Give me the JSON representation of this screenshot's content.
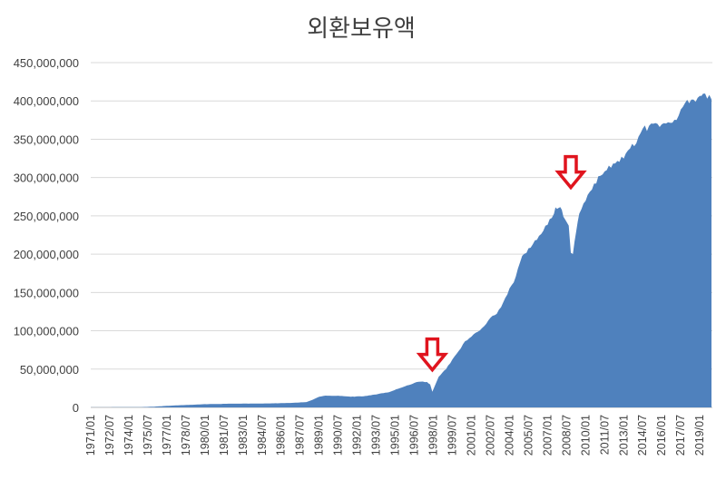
{
  "chart_data": {
    "type": "area",
    "title": "외환보유액",
    "xlabel": "",
    "ylabel": "",
    "ylim": [
      0,
      450000000
    ],
    "grid": true,
    "legend": "none",
    "color": "#4f81bd",
    "annotation_color": "#e0141e",
    "y_ticks": [
      "0",
      "50,000,000",
      "100,000,000",
      "150,000,000",
      "200,000,000",
      "250,000,000",
      "300,000,000",
      "350,000,000",
      "400,000,000",
      "450,000,000"
    ],
    "x_ticks": [
      "1971/01",
      "1972/07",
      "1974/01",
      "1975/07",
      "1977/01",
      "1978/07",
      "1980/01",
      "1981/07",
      "1983/01",
      "1984/07",
      "1986/01",
      "1987/07",
      "1989/01",
      "1990/07",
      "1992/01",
      "1993/07",
      "1995/01",
      "1996/07",
      "1998/01",
      "1999/07",
      "2001/01",
      "2002/07",
      "2004/01",
      "2005/07",
      "2007/01",
      "2008/07",
      "2010/01",
      "2011/07",
      "2013/01",
      "2014/07",
      "2016/01",
      "2017/07",
      "2019/01"
    ],
    "x": [
      "1971/01",
      "1973/01",
      "1975/01",
      "1976/01",
      "1977/01",
      "1978/01",
      "1979/01",
      "1980/01",
      "1982/01",
      "1984/01",
      "1986/01",
      "1987/01",
      "1988/01",
      "1988/07",
      "1989/01",
      "1989/07",
      "1990/01",
      "1990/07",
      "1991/07",
      "1992/07",
      "1993/07",
      "1994/07",
      "1995/07",
      "1996/07",
      "1997/01",
      "1997/07",
      "1997/10",
      "1997/12",
      "1998/06",
      "1999/01",
      "1999/07",
      "2000/01",
      "2000/07",
      "2001/01",
      "2001/07",
      "2002/01",
      "2002/07",
      "2003/01",
      "2003/07",
      "2004/01",
      "2004/07",
      "2005/01",
      "2005/07",
      "2006/01",
      "2006/07",
      "2007/01",
      "2007/07",
      "2007/10",
      "2008/01",
      "2008/04",
      "2008/07",
      "2008/09",
      "2008/11",
      "2009/01",
      "2009/04",
      "2009/07",
      "2010/01",
      "2010/07",
      "2011/01",
      "2011/07",
      "2012/01",
      "2012/07",
      "2013/01",
      "2013/07",
      "2014/01",
      "2014/07",
      "2015/01",
      "2015/07",
      "2016/01",
      "2016/07",
      "2017/01",
      "2017/07",
      "2018/01",
      "2018/07",
      "2019/01",
      "2019/04",
      "2019/08",
      "2019/10",
      "2019/12"
    ],
    "values": [
      100000,
      200000,
      400000,
      1000000,
      2000000,
      2800000,
      3500000,
      4200000,
      4800000,
      5000000,
      5500000,
      6000000,
      7000000,
      10000000,
      14000000,
      15500000,
      15000000,
      15200000,
      14000000,
      14500000,
      17000000,
      20000000,
      26000000,
      32000000,
      34000000,
      33000000,
      30000000,
      20400000,
      40000000,
      50000000,
      62000000,
      74000000,
      86000000,
      93000000,
      99000000,
      105000000,
      116000000,
      123000000,
      136000000,
      155000000,
      170000000,
      200000000,
      206000000,
      216000000,
      228000000,
      240000000,
      255000000,
      262000000,
      263000000,
      250000000,
      243000000,
      240000000,
      201000000,
      201000000,
      230000000,
      250000000,
      270000000,
      286000000,
      300000000,
      310000000,
      315000000,
      322000000,
      328000000,
      340000000,
      345000000,
      365000000,
      365000000,
      369000000,
      368000000,
      372000000,
      372000000,
      385000000,
      397000000,
      403000000,
      403000000,
      405000000,
      406000000,
      409000000,
      402000000
    ],
    "annotations": [
      {
        "label": "down-arrow",
        "at": "1997/12",
        "value": 49000000
      },
      {
        "label": "down-arrow",
        "at": "2008/11",
        "value": 287000000
      }
    ]
  }
}
